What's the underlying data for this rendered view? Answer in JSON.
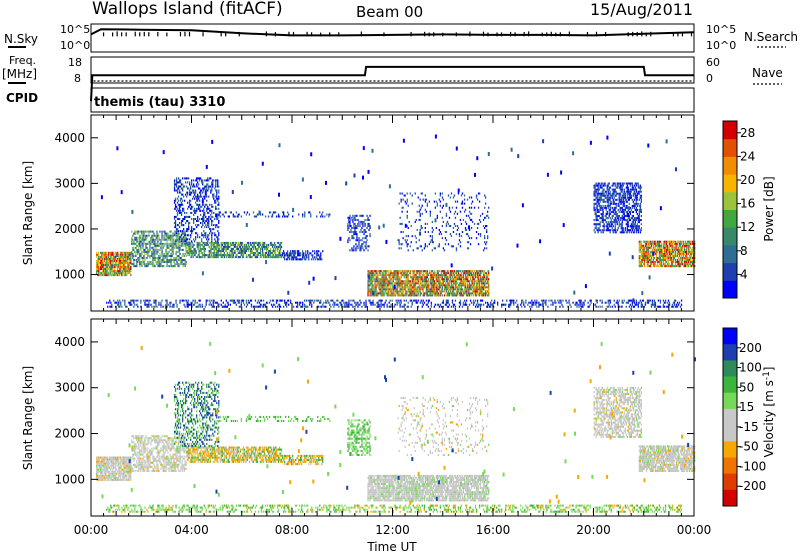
{
  "header": {
    "site": "Wallops Island (fitACF)",
    "beam": "Beam 00",
    "date": "15/Aug/2011"
  },
  "left_labels": {
    "nsky": "N.Sky",
    "freq": "Freq.",
    "freq_unit": "[MHz]",
    "cpid": "CPID"
  },
  "right_labels": {
    "nsearch": "N.Search",
    "nave": "Nave"
  },
  "cpid_value": "themis (tau) 3310",
  "noise_axis": {
    "left_ticks": [
      "10^5",
      "10^0"
    ],
    "right_ticks": [
      "10^5",
      "10^0"
    ]
  },
  "freq_axis": {
    "left_ticks": [
      "18",
      "8"
    ],
    "right_ticks": [
      "60",
      "0"
    ]
  },
  "chart_data": [
    {
      "type": "line",
      "name": "noise",
      "x": [
        0,
        0.4,
        2,
        4,
        6,
        8,
        10,
        12,
        14,
        16,
        18,
        20,
        22,
        24
      ],
      "y": [
        3.2,
        4.2,
        4.1,
        4.0,
        3.4,
        3.0,
        3.0,
        3.1,
        3.2,
        3.1,
        3.1,
        3.0,
        3.3,
        3.6
      ],
      "ylim": [
        0,
        5
      ]
    },
    {
      "type": "line",
      "name": "frequency",
      "x": [
        0,
        0.05,
        10.9,
        10.95,
        22.0,
        22.05,
        24
      ],
      "y": [
        0,
        10.8,
        10.8,
        14.3,
        14.3,
        10.8,
        10.8
      ],
      "ylim": [
        8,
        18
      ]
    },
    {
      "type": "heatmap",
      "name": "power",
      "xlabel": "Time UT",
      "ylabel": "Slant Range [km]",
      "xlim": [
        0,
        24
      ],
      "ylim": [
        200,
        4500
      ],
      "x_ticks": [
        "00:00",
        "04:00",
        "08:00",
        "12:00",
        "16:00",
        "20:00",
        "00:00"
      ],
      "y_ticks": [
        1000,
        2000,
        3000,
        4000
      ],
      "colorbar": {
        "label": "Power [dB]",
        "ticks": [
          4,
          8,
          12,
          16,
          20,
          24,
          28
        ],
        "range": [
          0,
          30
        ],
        "colors": [
          "#0000ff",
          "#1d3fb0",
          "#2e6e96",
          "#39886a",
          "#3fa93f",
          "#9ac43c",
          "#f7b500",
          "#f28c00",
          "#e25000",
          "#d40000"
        ]
      },
      "regions": [
        {
          "t": [
            0.2,
            1.6
          ],
          "r": [
            950,
            1450
          ],
          "density": 0.85
        },
        {
          "t": [
            1.6,
            3.8
          ],
          "r": [
            1150,
            1950
          ],
          "density": 0.55
        },
        {
          "t": [
            3.8,
            7.6
          ],
          "r": [
            1350,
            1700
          ],
          "density": 0.7
        },
        {
          "t": [
            7.6,
            9.2
          ],
          "r": [
            1300,
            1520
          ],
          "density": 0.6
        },
        {
          "t": [
            3.3,
            5.1
          ],
          "r": [
            1700,
            3100
          ],
          "density": 0.35
        },
        {
          "t": [
            5.0,
            9.5
          ],
          "r": [
            2250,
            2350
          ],
          "density": 0.25
        },
        {
          "t": [
            11.0,
            15.8
          ],
          "r": [
            500,
            1050
          ],
          "density": 0.8
        },
        {
          "t": [
            12.2,
            15.8
          ],
          "r": [
            1500,
            2800
          ],
          "density": 0.12
        },
        {
          "t": [
            10.2,
            11.1
          ],
          "r": [
            1500,
            2300
          ],
          "density": 0.4
        },
        {
          "t": [
            0.6,
            23.5
          ],
          "r": [
            250,
            420
          ],
          "density": 0.35
        },
        {
          "t": [
            20.0,
            21.9
          ],
          "r": [
            1900,
            3000
          ],
          "density": 0.55
        },
        {
          "t": [
            21.8,
            24.0
          ],
          "r": [
            1150,
            1700
          ],
          "density": 0.8
        }
      ]
    },
    {
      "type": "heatmap",
      "name": "velocity",
      "xlabel": "Time UT",
      "ylabel": "Slant Range [km]",
      "xlim": [
        0,
        24
      ],
      "ylim": [
        200,
        4500
      ],
      "x_ticks": [
        "00:00",
        "04:00",
        "08:00",
        "12:00",
        "16:00",
        "20:00",
        "00:00"
      ],
      "y_ticks": [
        1000,
        2000,
        3000,
        4000
      ],
      "colorbar": {
        "label": "Velocity [m s^-1]",
        "ticks": [
          200,
          100,
          50,
          15,
          -15,
          -50,
          -100,
          -200
        ],
        "colors": [
          "#0000ff",
          "#1d3fb0",
          "#2e8a5c",
          "#3cb53c",
          "#77d95a",
          "#c8c8c8",
          "#c8c8c8",
          "#f7a800",
          "#f07400",
          "#e03c00",
          "#d40000"
        ]
      },
      "regions": [
        {
          "t": [
            0.2,
            1.6
          ],
          "r": [
            950,
            1450
          ],
          "density": 0.85
        },
        {
          "t": [
            1.6,
            3.8
          ],
          "r": [
            1150,
            1950
          ],
          "density": 0.55
        },
        {
          "t": [
            3.8,
            7.6
          ],
          "r": [
            1350,
            1700
          ],
          "density": 0.7
        },
        {
          "t": [
            7.6,
            9.2
          ],
          "r": [
            1300,
            1520
          ],
          "density": 0.6
        },
        {
          "t": [
            3.3,
            5.1
          ],
          "r": [
            1700,
            3100
          ],
          "density": 0.35
        },
        {
          "t": [
            5.0,
            9.5
          ],
          "r": [
            2250,
            2350
          ],
          "density": 0.25
        },
        {
          "t": [
            11.0,
            15.8
          ],
          "r": [
            500,
            1050
          ],
          "density": 0.8
        },
        {
          "t": [
            12.2,
            15.8
          ],
          "r": [
            1500,
            2800
          ],
          "density": 0.12
        },
        {
          "t": [
            10.2,
            11.1
          ],
          "r": [
            1500,
            2300
          ],
          "density": 0.4
        },
        {
          "t": [
            0.6,
            23.5
          ],
          "r": [
            250,
            420
          ],
          "density": 0.35
        },
        {
          "t": [
            20.0,
            21.9
          ],
          "r": [
            1900,
            3000
          ],
          "density": 0.55
        },
        {
          "t": [
            21.8,
            24.0
          ],
          "r": [
            1150,
            1700
          ],
          "density": 0.8
        }
      ]
    }
  ]
}
